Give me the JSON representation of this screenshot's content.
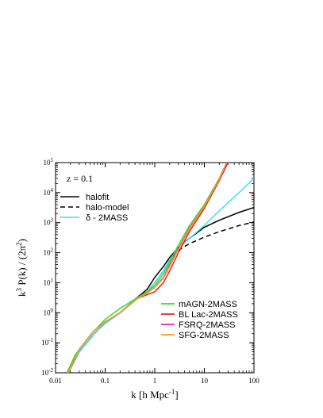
{
  "chart_data": {
    "type": "line",
    "annotation": "z = 0.1",
    "xlabel": "k [h Mpc",
    "xlabel_sup": "-1",
    "xlabel_end": "]",
    "ylabel_parts": [
      "k",
      "3",
      " P(k) / (2π",
      "2",
      ")"
    ],
    "x_scale": "log",
    "y_scale": "log",
    "xlim": [
      0.01,
      100
    ],
    "ylim": [
      0.01,
      100000
    ],
    "x_ticks": [
      {
        "v": 0.01,
        "label": "0.01"
      },
      {
        "v": 0.1,
        "label": "0.1"
      },
      {
        "v": 1,
        "label": "1"
      },
      {
        "v": 10,
        "label": "10"
      },
      {
        "v": 100,
        "label": "100"
      }
    ],
    "y_ticks": [
      {
        "v": 0.01,
        "base": "10",
        "exp": "-2"
      },
      {
        "v": 0.1,
        "base": "10",
        "exp": "-1"
      },
      {
        "v": 1,
        "base": "10",
        "exp": "0"
      },
      {
        "v": 10,
        "base": "10",
        "exp": "1"
      },
      {
        "v": 100,
        "base": "10",
        "exp": "2"
      },
      {
        "v": 1000,
        "base": "10",
        "exp": "3"
      },
      {
        "v": 10000,
        "base": "10",
        "exp": "4"
      },
      {
        "v": 100000,
        "base": "10",
        "exp": "5"
      }
    ],
    "legend_top_left": [
      {
        "name": "halofit",
        "color": "#000000",
        "dash": "none"
      },
      {
        "name": "halo-model",
        "color": "#000000",
        "dash": "6,4"
      },
      {
        "name": "δ - 2MASS",
        "color": "#33e6ee",
        "dash": "none"
      }
    ],
    "legend_bottom_right": [
      {
        "name": "mAGN-2MASS",
        "color": "#33dd33"
      },
      {
        "name": "BL Lac-2MASS",
        "color": "#ee2222"
      },
      {
        "name": "FSRQ-2MASS",
        "color": "#dd22cc"
      },
      {
        "name": "SFG-2MASS",
        "color": "#f0a020"
      }
    ],
    "series": [
      {
        "name": "halofit",
        "color": "#000000",
        "dash": "none",
        "points": [
          [
            0.018,
            0.01
          ],
          [
            0.03,
            0.05
          ],
          [
            0.06,
            0.2
          ],
          [
            0.1,
            0.45
          ],
          [
            0.2,
            1.0
          ],
          [
            0.4,
            2.8
          ],
          [
            0.7,
            6
          ],
          [
            1,
            15
          ],
          [
            1.5,
            35
          ],
          [
            2,
            70
          ],
          [
            3,
            150
          ],
          [
            5,
            300
          ],
          [
            10,
            700
          ],
          [
            20,
            1200
          ],
          [
            50,
            2200
          ],
          [
            100,
            3200
          ]
        ]
      },
      {
        "name": "halo-model",
        "color": "#000000",
        "dash": "6,4",
        "points": [
          [
            0.018,
            0.01
          ],
          [
            0.03,
            0.05
          ],
          [
            0.06,
            0.2
          ],
          [
            0.1,
            0.45
          ],
          [
            0.2,
            1.0
          ],
          [
            0.4,
            2.8
          ],
          [
            0.7,
            5
          ],
          [
            1,
            10
          ],
          [
            1.5,
            25
          ],
          [
            2,
            60
          ],
          [
            3,
            120
          ],
          [
            5,
            200
          ],
          [
            10,
            330
          ],
          [
            20,
            500
          ],
          [
            50,
            800
          ],
          [
            100,
            1050
          ]
        ]
      },
      {
        "name": "δ - 2MASS",
        "color": "#33e6ee",
        "dash": "none",
        "points": [
          [
            0.018,
            0.01
          ],
          [
            0.03,
            0.05
          ],
          [
            0.06,
            0.2
          ],
          [
            0.1,
            0.45
          ],
          [
            0.2,
            1.0
          ],
          [
            0.4,
            2.8
          ],
          [
            0.7,
            5
          ],
          [
            1,
            10
          ],
          [
            1.5,
            25
          ],
          [
            2,
            60
          ],
          [
            3,
            140
          ],
          [
            5,
            300
          ],
          [
            10,
            800
          ],
          [
            20,
            2500
          ],
          [
            50,
            10000
          ],
          [
            100,
            30000
          ]
        ]
      },
      {
        "name": "mAGN-2MASS",
        "color": "#33dd33",
        "dash": "none",
        "points": [
          [
            0.017,
            0.01
          ],
          [
            0.025,
            0.04
          ],
          [
            0.05,
            0.18
          ],
          [
            0.1,
            0.6
          ],
          [
            0.2,
            1.4
          ],
          [
            0.45,
            3.2
          ],
          [
            0.7,
            5
          ],
          [
            1,
            8
          ],
          [
            1.5,
            20
          ],
          [
            2,
            50
          ],
          [
            3,
            180
          ],
          [
            5,
            800
          ],
          [
            10,
            4000
          ],
          [
            20,
            30000
          ],
          [
            28,
            100000
          ]
        ]
      },
      {
        "name": "BL Lac-2MASS",
        "color": "#ee2222",
        "dash": "none",
        "points": [
          [
            0.018,
            0.01
          ],
          [
            0.03,
            0.06
          ],
          [
            0.06,
            0.25
          ],
          [
            0.1,
            0.5
          ],
          [
            0.2,
            1.0
          ],
          [
            0.45,
            3.0
          ],
          [
            0.7,
            4
          ],
          [
            1,
            5
          ],
          [
            1.5,
            10
          ],
          [
            2,
            25
          ],
          [
            3,
            100
          ],
          [
            5,
            500
          ],
          [
            10,
            3000
          ],
          [
            20,
            25000
          ],
          [
            30,
            100000
          ]
        ]
      },
      {
        "name": "FSRQ-2MASS",
        "color": "#dd22cc",
        "dash": "none",
        "points": [
          [
            0.018,
            0.01
          ],
          [
            0.03,
            0.06
          ],
          [
            0.06,
            0.25
          ],
          [
            0.1,
            0.5
          ],
          [
            0.2,
            1.0
          ],
          [
            0.45,
            3.0
          ],
          [
            0.7,
            4.5
          ],
          [
            1,
            7
          ],
          [
            1.5,
            15
          ],
          [
            2,
            40
          ],
          [
            3,
            140
          ],
          [
            5,
            650
          ],
          [
            10,
            3500
          ],
          [
            20,
            28000
          ],
          [
            29,
            100000
          ]
        ]
      },
      {
        "name": "SFG-2MASS",
        "color": "#f0a020",
        "dash": "none",
        "points": [
          [
            0.018,
            0.01
          ],
          [
            0.03,
            0.06
          ],
          [
            0.06,
            0.25
          ],
          [
            0.1,
            0.5
          ],
          [
            0.2,
            1.0
          ],
          [
            0.45,
            3.0
          ],
          [
            0.7,
            4.5
          ],
          [
            1,
            7
          ],
          [
            1.5,
            14
          ],
          [
            2,
            35
          ],
          [
            3,
            130
          ],
          [
            5,
            600
          ],
          [
            10,
            3500
          ],
          [
            20,
            28000
          ],
          [
            28,
            100000
          ]
        ]
      }
    ]
  }
}
